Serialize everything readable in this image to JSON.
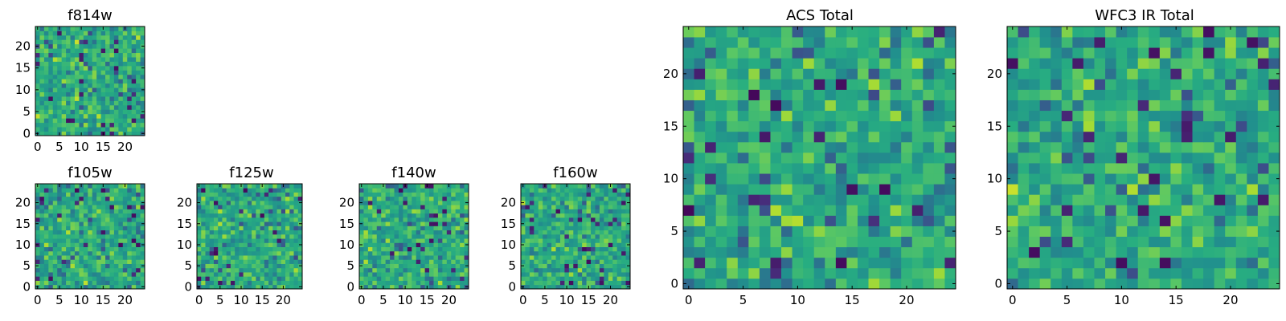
{
  "figure": {
    "panels": [
      {
        "title": "f814w"
      },
      {
        "title": "f105w"
      },
      {
        "title": "f125w"
      },
      {
        "title": "f140w"
      },
      {
        "title": "f160w"
      },
      {
        "title": "ACS Total"
      },
      {
        "title": "WFC3 IR Total"
      }
    ]
  },
  "chart_data": [
    {
      "type": "heatmap",
      "title": "f814w",
      "grid": [
        25,
        25
      ],
      "xticks": [
        0,
        5,
        10,
        15,
        20
      ],
      "yticks": [
        0,
        5,
        10,
        15,
        20
      ],
      "xlim": [
        -0.5,
        24.5
      ],
      "ylim": [
        -0.5,
        24.5
      ],
      "colormap": "viridis",
      "seed": 11
    },
    {
      "type": "heatmap",
      "title": "f105w",
      "grid": [
        25,
        25
      ],
      "xticks": [
        0,
        5,
        10,
        15,
        20
      ],
      "yticks": [
        0,
        5,
        10,
        15,
        20
      ],
      "xlim": [
        -0.5,
        24.5
      ],
      "ylim": [
        -0.5,
        24.5
      ],
      "colormap": "viridis",
      "seed": 23
    },
    {
      "type": "heatmap",
      "title": "f125w",
      "grid": [
        25,
        25
      ],
      "xticks": [
        0,
        5,
        10,
        15,
        20
      ],
      "yticks": [
        0,
        5,
        10,
        15,
        20
      ],
      "xlim": [
        -0.5,
        24.5
      ],
      "ylim": [
        -0.5,
        24.5
      ],
      "colormap": "viridis",
      "seed": 37
    },
    {
      "type": "heatmap",
      "title": "f140w",
      "grid": [
        25,
        25
      ],
      "xticks": [
        0,
        5,
        10,
        15,
        20
      ],
      "yticks": [
        0,
        5,
        10,
        15,
        20
      ],
      "xlim": [
        -0.5,
        24.5
      ],
      "ylim": [
        -0.5,
        24.5
      ],
      "colormap": "viridis",
      "seed": 41
    },
    {
      "type": "heatmap",
      "title": "f160w",
      "grid": [
        25,
        25
      ],
      "xticks": [
        0,
        5,
        10,
        15,
        20
      ],
      "yticks": [
        0,
        5,
        10,
        15,
        20
      ],
      "xlim": [
        -0.5,
        24.5
      ],
      "ylim": [
        -0.5,
        24.5
      ],
      "colormap": "viridis",
      "seed": 53
    },
    {
      "type": "heatmap",
      "title": "ACS Total",
      "grid": [
        25,
        25
      ],
      "xticks": [
        0,
        5,
        10,
        15,
        20
      ],
      "yticks": [
        0,
        5,
        10,
        15,
        20
      ],
      "xlim": [
        -0.5,
        24.5
      ],
      "ylim": [
        -0.5,
        24.5
      ],
      "colormap": "viridis",
      "seed": 67
    },
    {
      "type": "heatmap",
      "title": "WFC3 IR Total",
      "grid": [
        25,
        25
      ],
      "xticks": [
        0,
        5,
        10,
        15,
        20
      ],
      "yticks": [
        0,
        5,
        10,
        15,
        20
      ],
      "xlim": [
        -0.5,
        24.5
      ],
      "ylim": [
        -0.5,
        24.5
      ],
      "colormap": "viridis",
      "seed": 79
    }
  ]
}
